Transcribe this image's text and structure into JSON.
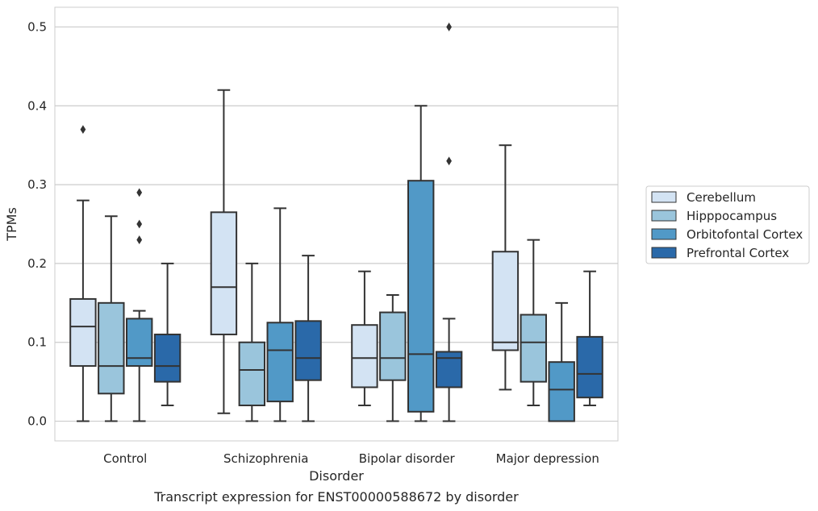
{
  "chart_data": {
    "type": "box",
    "caption": "Transcript expression for ENST00000588672 by disorder",
    "xlabel": "Disorder",
    "ylabel": "TPMs",
    "ylim": [
      -0.025,
      0.525
    ],
    "yticks": [
      0.0,
      0.1,
      0.2,
      0.3,
      0.4,
      0.5
    ],
    "ytick_labels": [
      "0.0",
      "0.1",
      "0.2",
      "0.3",
      "0.4",
      "0.5"
    ],
    "grid": "horizontal",
    "legend_position": "right-outside",
    "categories": [
      "Control",
      "Schizophrenia",
      "Bipolar disorder",
      "Major depression"
    ],
    "series": [
      {
        "name": "Cerebellum",
        "color": "#d3e3f3",
        "boxes": [
          {
            "whislo": 0.0,
            "q1": 0.07,
            "med": 0.12,
            "q3": 0.155,
            "whishi": 0.28,
            "fliers": [
              0.37
            ]
          },
          {
            "whislo": 0.01,
            "q1": 0.11,
            "med": 0.17,
            "q3": 0.265,
            "whishi": 0.42,
            "fliers": []
          },
          {
            "whislo": 0.02,
            "q1": 0.043,
            "med": 0.08,
            "q3": 0.122,
            "whishi": 0.19,
            "fliers": []
          },
          {
            "whislo": 0.04,
            "q1": 0.09,
            "med": 0.1,
            "q3": 0.215,
            "whishi": 0.35,
            "fliers": []
          }
        ]
      },
      {
        "name": "Hipppocampus",
        "color": "#9ac5dc",
        "boxes": [
          {
            "whislo": 0.0,
            "q1": 0.035,
            "med": 0.07,
            "q3": 0.15,
            "whishi": 0.26,
            "fliers": []
          },
          {
            "whislo": 0.0,
            "q1": 0.02,
            "med": 0.065,
            "q3": 0.1,
            "whishi": 0.2,
            "fliers": []
          },
          {
            "whislo": 0.0,
            "q1": 0.052,
            "med": 0.08,
            "q3": 0.138,
            "whishi": 0.16,
            "fliers": []
          },
          {
            "whislo": 0.02,
            "q1": 0.05,
            "med": 0.1,
            "q3": 0.135,
            "whishi": 0.23,
            "fliers": []
          }
        ]
      },
      {
        "name": "Orbitofontal Cortex",
        "color": "#5199c7",
        "boxes": [
          {
            "whislo": 0.0,
            "q1": 0.07,
            "med": 0.08,
            "q3": 0.13,
            "whishi": 0.14,
            "fliers": [
              0.23,
              0.25,
              0.29
            ]
          },
          {
            "whislo": 0.0,
            "q1": 0.025,
            "med": 0.09,
            "q3": 0.125,
            "whishi": 0.27,
            "fliers": []
          },
          {
            "whislo": 0.0,
            "q1": 0.012,
            "med": 0.085,
            "q3": 0.305,
            "whishi": 0.4,
            "fliers": []
          },
          {
            "whislo": 0.0,
            "q1": 0.0,
            "med": 0.04,
            "q3": 0.075,
            "whishi": 0.15,
            "fliers": []
          }
        ]
      },
      {
        "name": "Prefrontal Cortex",
        "color": "#2a69a9",
        "boxes": [
          {
            "whislo": 0.02,
            "q1": 0.05,
            "med": 0.07,
            "q3": 0.11,
            "whishi": 0.2,
            "fliers": []
          },
          {
            "whislo": 0.0,
            "q1": 0.052,
            "med": 0.08,
            "q3": 0.127,
            "whishi": 0.21,
            "fliers": []
          },
          {
            "whislo": 0.0,
            "q1": 0.043,
            "med": 0.08,
            "q3": 0.088,
            "whishi": 0.13,
            "fliers": [
              0.33,
              0.5
            ]
          },
          {
            "whislo": 0.02,
            "q1": 0.03,
            "med": 0.06,
            "q3": 0.107,
            "whishi": 0.19,
            "fliers": []
          }
        ]
      }
    ],
    "colors": {
      "grid": "#cccccc",
      "frame": "#cccccc",
      "line": "#333333"
    }
  }
}
